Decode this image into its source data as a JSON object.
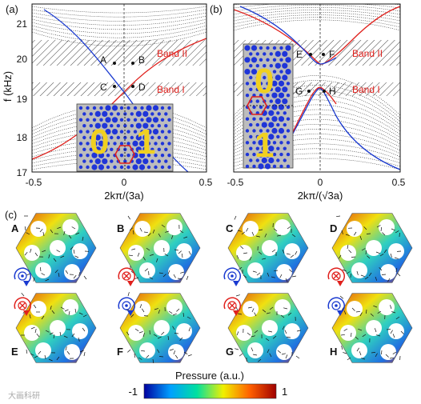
{
  "panels": {
    "a": {
      "label": "(a)",
      "y_axis_label": "f (kHz)",
      "x_axis_label": "2kπ/(3a)",
      "y_ticks": [
        "17",
        "18",
        "19",
        "20",
        "21"
      ],
      "x_ticks": [
        "-0.5",
        "0",
        "0.5"
      ],
      "band_labels": [
        "Band II",
        "Band I"
      ],
      "points": [
        "A",
        "B",
        "C",
        "D"
      ],
      "inset_digits": [
        "0",
        "1"
      ]
    },
    "b": {
      "label": "(b)",
      "x_axis_label": "2kπ/(√3a)",
      "x_ticks": [
        "-0.5",
        "0",
        "0.5"
      ],
      "band_labels": [
        "Band II",
        "Band I"
      ],
      "points": [
        "E",
        "F",
        "G",
        "H"
      ],
      "inset_digits": [
        "0",
        "1"
      ]
    },
    "c": {
      "label": "(c)",
      "field_labels": [
        "A",
        "B",
        "C",
        "D",
        "E",
        "F",
        "G",
        "H"
      ]
    }
  },
  "colorbar": {
    "title": "Pressure (a.u.)",
    "min_label": "-1",
    "max_label": "1",
    "colors": [
      "#0000a0",
      "#00a0ff",
      "#00e0a0",
      "#f0f000",
      "#ff6000",
      "#a00000"
    ]
  },
  "watermark": "大画科研"
}
